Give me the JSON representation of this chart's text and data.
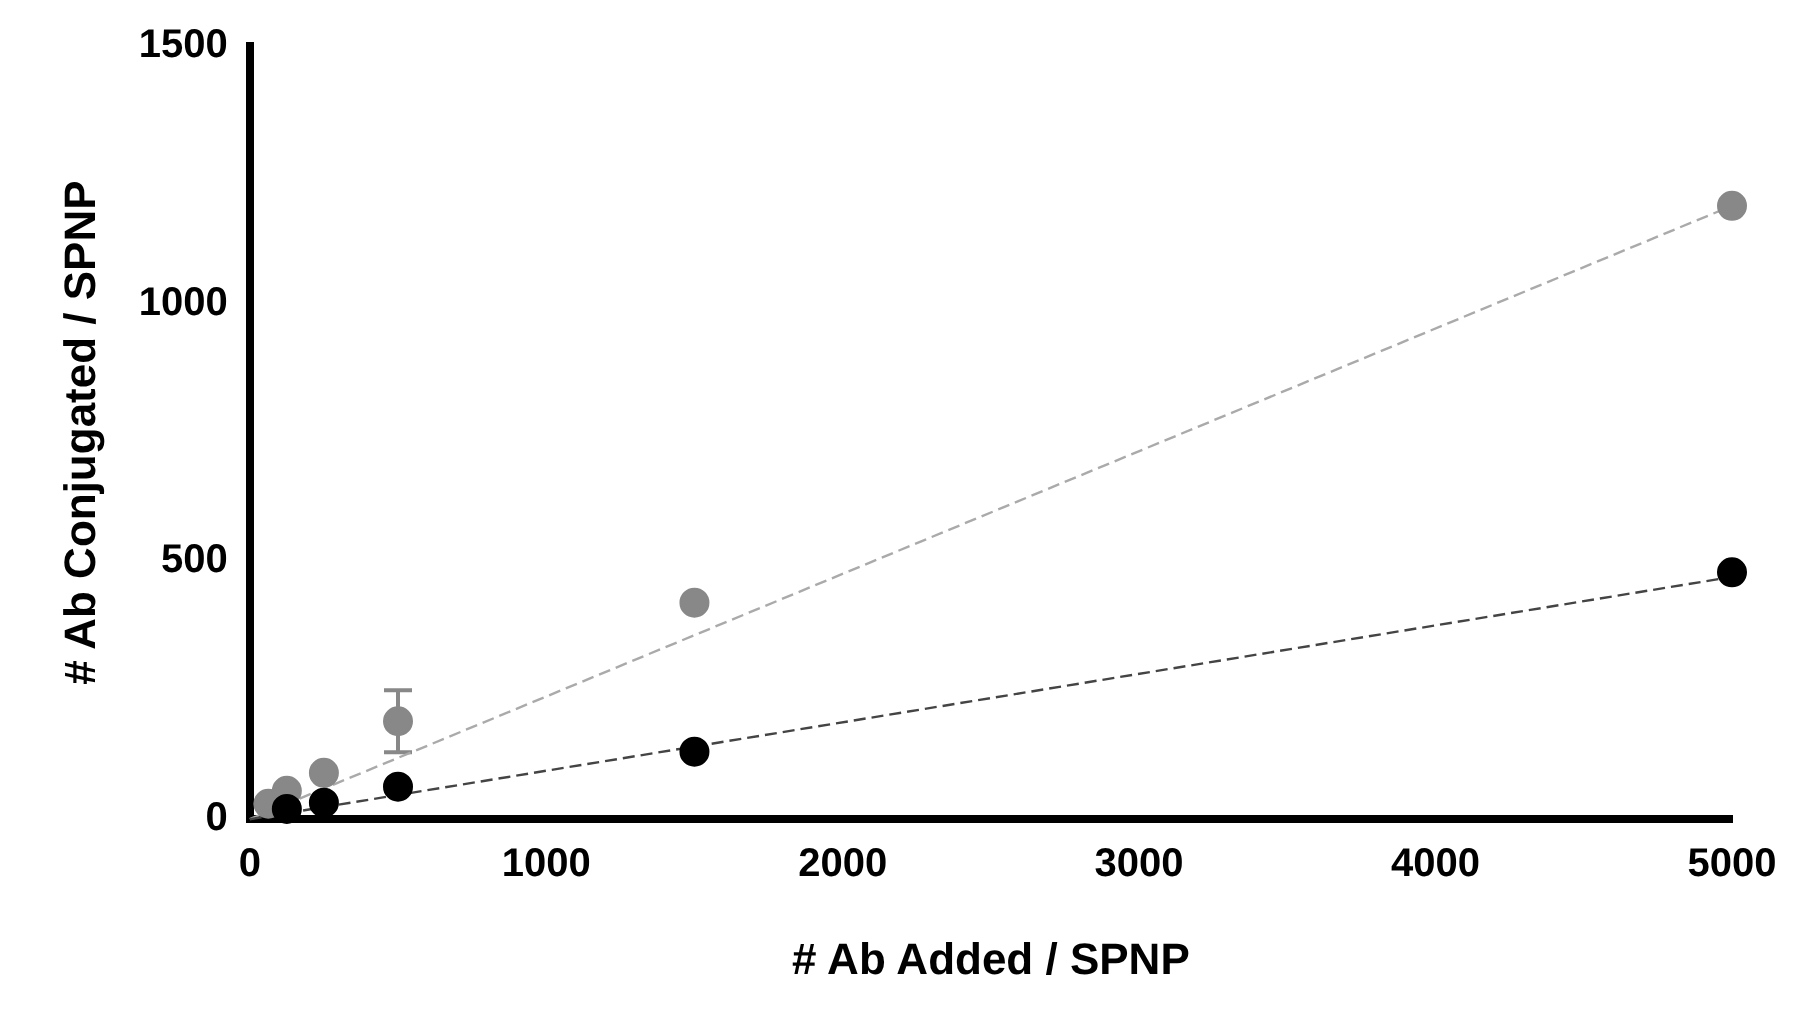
{
  "chart_data": {
    "type": "scatter",
    "xlabel": "# Ab Added / SPNP",
    "ylabel": "# Ab Conjugated / SPNP",
    "xlim": [
      0,
      5000
    ],
    "xticks": [
      0,
      1000,
      2000,
      3000,
      4000,
      5000
    ],
    "ylim": [
      0,
      1500
    ],
    "yticks": [
      0,
      500,
      1000,
      1500
    ],
    "grid": false,
    "legend": false,
    "marker": "circle",
    "series": [
      {
        "type": "line",
        "color": "#aaaaaa",
        "x": [
          0,
          5000
        ],
        "values": [
          0,
          1190
        ],
        "marker": "none",
        "line_style": "dashed"
      },
      {
        "type": "line",
        "color": "#444444",
        "x": [
          0,
          5000
        ],
        "values": [
          0,
          470
        ],
        "marker": "none",
        "line_style": "dashed"
      },
      {
        "color": "#888888",
        "x": [
          62.5,
          125,
          250,
          500,
          1500,
          5000
        ],
        "values": [
          30,
          55,
          90,
          190,
          420,
          1190
        ],
        "errors": [
          null,
          null,
          null,
          [
            130,
            250
          ],
          null,
          null
        ]
      },
      {
        "color": "#000000",
        "x": [
          125,
          250,
          500,
          1500,
          5000
        ],
        "values": [
          20,
          32,
          63,
          131,
          479
        ]
      }
    ]
  }
}
